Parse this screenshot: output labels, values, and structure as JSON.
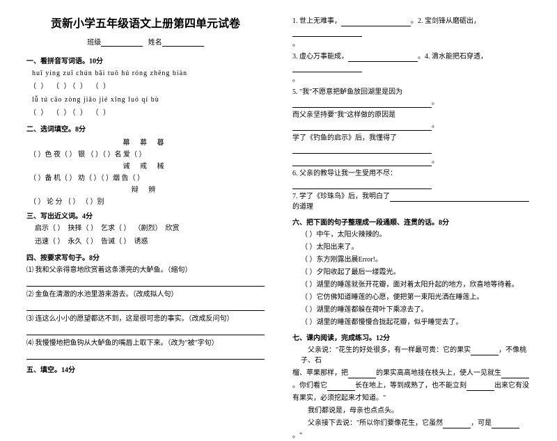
{
  "title": "贡新小学五年级语文上册第四单元试卷",
  "classLabel": "班级",
  "nameLabel": "姓名",
  "s1": "一、看拼音写词语。10分",
  "p1": "huī  yìng      zuǐ  chún      bǎi  tuō        hú róng zhēng biàn",
  "pr1": "（        ）   （        ）（        ）    （             ）",
  "p2": "lǚ    tú       cāo  zòng      jiǎo jié        xīng  luó  qí  bù",
  "pr2": "（        ）   （        ）（        ）    （             ）",
  "s2": "二、选词填空。8分",
  "g1": "幕    募    暮",
  "g1line": "（    ）色    夜（    ）    银 （    ）（    ）名    爱（    ）",
  "g2": "诫    戒    械",
  "g2line": "（    ）备    机（    ）    劝（    ）（    ）烟    告（    ）",
  "g3": "辩        辨",
  "g3line": "（    ） 论    分 （    ）        （    ）别",
  "s3": "三、写出近义词。4分",
  "n1a": "启示（          ）",
  "n1b": "抉择（          ）",
  "n1c": "乞求（          ）",
  "n1d": "（剧烈）",
  "n1e": "欣赏",
  "n2a": "迅速（          ）",
  "n2b": "永久（          ）",
  "n2c": "告诫（          ）",
  "n2d": "诱惑",
  "s4": "四、按要求写句子。8分",
  "q1": "⑴ 我和父亲得意地欣赏着这条漂亮的大鲈鱼。（缩句）",
  "q2": "⑵ 金鱼在清澈的水池里游来游去。（改成拟人句）",
  "q3": "⑶ 连这么小小的愿望都达不到，这是很可悲的事实。（改成反问句）",
  "q4": "⑷ 我慢慢地把鱼钩从大鲈鱼的嘴唇上取下来。（改为\"被\"字句）",
  "s5": "五、填空。14分",
  "r1a": "1. 世上无难事，",
  "r1b": "。2. 宝剑锋从磨砺出，",
  "r2a": "3. 虚心万事能成，",
  "r2b": "。4. 滴水能把石穿透，",
  "r5": "5. \"我\"不愿意把鲈鱼放回湖里是因为",
  "r5b": "而父亲坚持要\"我\"这样做的原因是",
  "r5c": "学了《钓鱼的启示》后，我懂得了",
  "r6": "6. 父亲的教导让我一生受用不尽：",
  "r7": "7. 学了《珍珠鸟》后，我明白了",
  "r7b": "的道理",
  "s6": "六、把下面的句子整理成一段通顺、连贯的话。8分",
  "o1": "（       ）中午，太阳火辣辣的。",
  "o2": "（       ）太阳出来了。",
  "o3": "（       ）东方刚露出晨Error!。",
  "o4": "（       ）夕阳收起了最后一缕霞光。",
  "o5": "（       ）湖里的睡莲就张开花瓣，面对着太阳升起的地方，欣喜地等待着。",
  "o6": "（       ）它仿佛知道睡莲的心愿，便把第一束阳光洒在睡莲上。",
  "o7": "（       ）湖里的睡莲都躲在荷叶下乘凉去了。",
  "o8": "（       ）湖里的睡莲都慢慢合拢起花瓣，似乎睡觉去了。",
  "s7": "七、课内阅读，完成练习。12分",
  "t1": "父亲说：\"花生的好处很多，有一样最可贵：它的果实",
  "t1b": "，不像桃子、石",
  "t2": "榴、苹果那样，把",
  "t2b": "的果实高高地挂在枝头上，使人一见就生",
  "t3": "。你们看它",
  "t3b": "长在地上，等到成熟了，也不能立刻",
  "t3c": "出来它有没",
  "t4": "有果实，必须挖起来才知道。\"",
  "t5": "我们都说是，母亲也点点头。",
  "t6": "父亲接下去说：\"所以你们要像花生，它虽然",
  "t6b": "，可是",
  "t7": "。\""
}
